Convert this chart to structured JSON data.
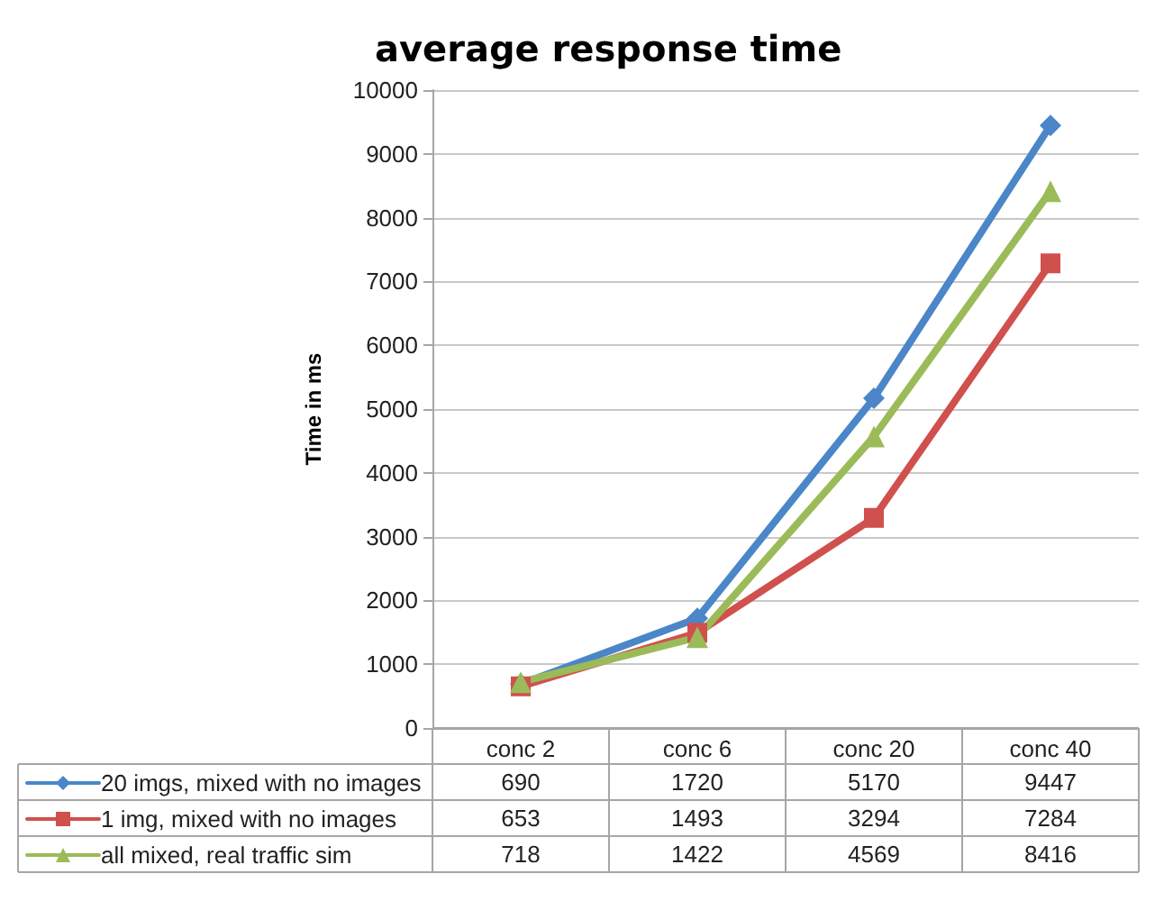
{
  "chart_data": {
    "type": "line",
    "title": "average response time",
    "ylabel": "Time in ms",
    "categories": [
      "conc 2",
      "conc 6",
      "conc 20",
      "conc 40"
    ],
    "series": [
      {
        "name": "20 imgs, mixed with no images",
        "color": "#4a86c8",
        "marker": "diamond",
        "values": [
          690,
          1720,
          5170,
          9447
        ]
      },
      {
        "name": "1 img, mixed with no images",
        "color": "#d0504d",
        "marker": "square",
        "values": [
          653,
          1493,
          3294,
          7284
        ]
      },
      {
        "name": "all mixed, real traffic sim",
        "color": "#9bbb59",
        "marker": "triangle",
        "values": [
          718,
          1422,
          4569,
          8416
        ]
      }
    ],
    "ylim": [
      0,
      10000
    ],
    "yticks": [
      0,
      1000,
      2000,
      3000,
      4000,
      5000,
      6000,
      7000,
      8000,
      9000,
      10000
    ],
    "grid": "y",
    "legend": "bottom",
    "data_labels": true
  }
}
